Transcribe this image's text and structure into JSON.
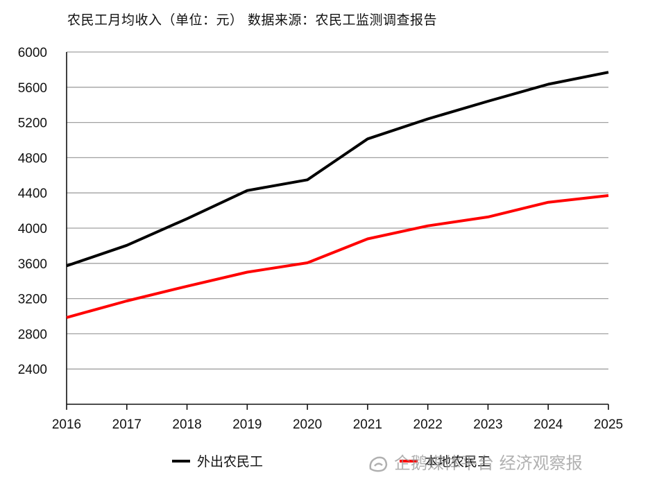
{
  "chart_data": {
    "type": "line",
    "title": "农民工月均收入（单位：元） 数据来源：农民工监测调查报告",
    "x": [
      "2016",
      "2017",
      "2018",
      "2019",
      "2020",
      "2021",
      "2022",
      "2023",
      "2024",
      "2025"
    ],
    "series": [
      {
        "name": "外出农民工",
        "color": "#000000",
        "values": [
          3572,
          3805,
          4107,
          4427,
          4549,
          5013,
          5240,
          5441,
          5634,
          5770
        ]
      },
      {
        "name": "本地农民工",
        "color": "#ff0000",
        "values": [
          2985,
          3173,
          3340,
          3500,
          3606,
          3878,
          4026,
          4127,
          4294,
          4370
        ]
      }
    ],
    "ylim": [
      2000,
      6000
    ],
    "yticks": [
      "2400",
      "2800",
      "3200",
      "3600",
      "4000",
      "4400",
      "4800",
      "5200",
      "5600",
      "6000"
    ],
    "grid": true,
    "legend_position": "bottom"
  },
  "watermark": {
    "text": "企鹅媒体平台 经济观察报",
    "icon": "penguin-logo-icon"
  }
}
